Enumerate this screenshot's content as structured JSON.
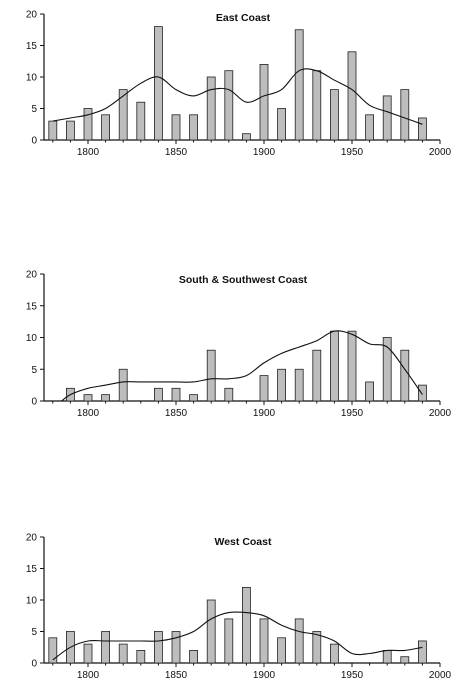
{
  "chart_data": [
    {
      "type": "bar",
      "title": "East Coast",
      "xlim": [
        1775,
        2000
      ],
      "ylim": [
        0,
        20
      ],
      "xticks": [
        "1800",
        "1850",
        "1900",
        "1950",
        "2000"
      ],
      "yticks": [
        "0",
        "5",
        "10",
        "15",
        "20"
      ],
      "series": [
        {
          "kind": "bar",
          "x": [
            1780,
            1790,
            1800,
            1810,
            1820,
            1830,
            1840,
            1850,
            1860,
            1870,
            1880,
            1890,
            1900,
            1910,
            1920,
            1930,
            1940,
            1950,
            1960,
            1970,
            1980,
            1990
          ],
          "y": [
            3,
            3,
            5,
            4,
            8,
            6,
            18,
            4,
            4,
            10,
            11,
            1,
            12,
            5,
            17.5,
            11,
            8,
            14,
            4,
            7,
            8,
            3.5
          ]
        },
        {
          "kind": "line",
          "x": [
            1780,
            1790,
            1800,
            1810,
            1820,
            1830,
            1840,
            1850,
            1860,
            1870,
            1880,
            1890,
            1900,
            1910,
            1920,
            1930,
            1940,
            1950,
            1960,
            1970,
            1980,
            1990
          ],
          "y": [
            3,
            3.5,
            4,
            5,
            7,
            9,
            10,
            8,
            7,
            8,
            8,
            6,
            7,
            8,
            11,
            11,
            9.5,
            8,
            5.5,
            4.5,
            3.5,
            2.5
          ]
        }
      ]
    },
    {
      "type": "bar",
      "title": "South & Southwest Coast",
      "xlim": [
        1775,
        2000
      ],
      "ylim": [
        0,
        20
      ],
      "xticks": [
        "1800",
        "1850",
        "1900",
        "1950",
        "2000"
      ],
      "yticks": [
        "0",
        "5",
        "10",
        "15",
        "20"
      ],
      "series": [
        {
          "kind": "bar",
          "x": [
            1790,
            1800,
            1810,
            1820,
            1840,
            1850,
            1860,
            1870,
            1880,
            1900,
            1910,
            1920,
            1930,
            1940,
            1950,
            1960,
            1970,
            1980,
            1990
          ],
          "y": [
            2,
            1,
            1,
            5,
            2,
            2,
            1,
            8,
            2,
            4,
            5,
            5,
            8,
            11,
            11,
            3,
            10,
            8,
            2.5
          ]
        },
        {
          "kind": "line",
          "x": [
            1785,
            1790,
            1800,
            1810,
            1820,
            1830,
            1840,
            1850,
            1860,
            1870,
            1880,
            1890,
            1900,
            1910,
            1920,
            1930,
            1940,
            1950,
            1960,
            1970,
            1980,
            1990
          ],
          "y": [
            0,
            1,
            2,
            2.5,
            3,
            3,
            3,
            3,
            3,
            3.5,
            3.5,
            4,
            6,
            7.5,
            8.5,
            9.5,
            11,
            10.5,
            9,
            8.5,
            5,
            1
          ]
        }
      ]
    },
    {
      "type": "bar",
      "title": "West Coast",
      "xlim": [
        1775,
        2000
      ],
      "ylim": [
        0,
        20
      ],
      "xticks": [
        "1800",
        "1850",
        "1900",
        "1950",
        "2000"
      ],
      "yticks": [
        "0",
        "5",
        "10",
        "15",
        "20"
      ],
      "series": [
        {
          "kind": "bar",
          "x": [
            1780,
            1790,
            1800,
            1810,
            1820,
            1830,
            1840,
            1850,
            1860,
            1870,
            1880,
            1890,
            1900,
            1910,
            1920,
            1930,
            1940,
            1970,
            1980,
            1990
          ],
          "y": [
            4,
            5,
            3,
            5,
            3,
            2,
            5,
            5,
            2,
            10,
            7,
            12,
            7,
            4,
            7,
            5,
            3,
            2,
            1,
            3.5
          ]
        },
        {
          "kind": "line",
          "x": [
            1780,
            1790,
            1800,
            1810,
            1820,
            1830,
            1840,
            1850,
            1860,
            1870,
            1880,
            1890,
            1900,
            1910,
            1920,
            1930,
            1940,
            1950,
            1960,
            1970,
            1980,
            1990
          ],
          "y": [
            0.5,
            2.5,
            3.5,
            3.5,
            3.5,
            3.5,
            3.5,
            4,
            5,
            7,
            8,
            8,
            7.5,
            6,
            5,
            4.5,
            3.5,
            1.5,
            1.5,
            2,
            2,
            2.5
          ]
        }
      ]
    }
  ]
}
